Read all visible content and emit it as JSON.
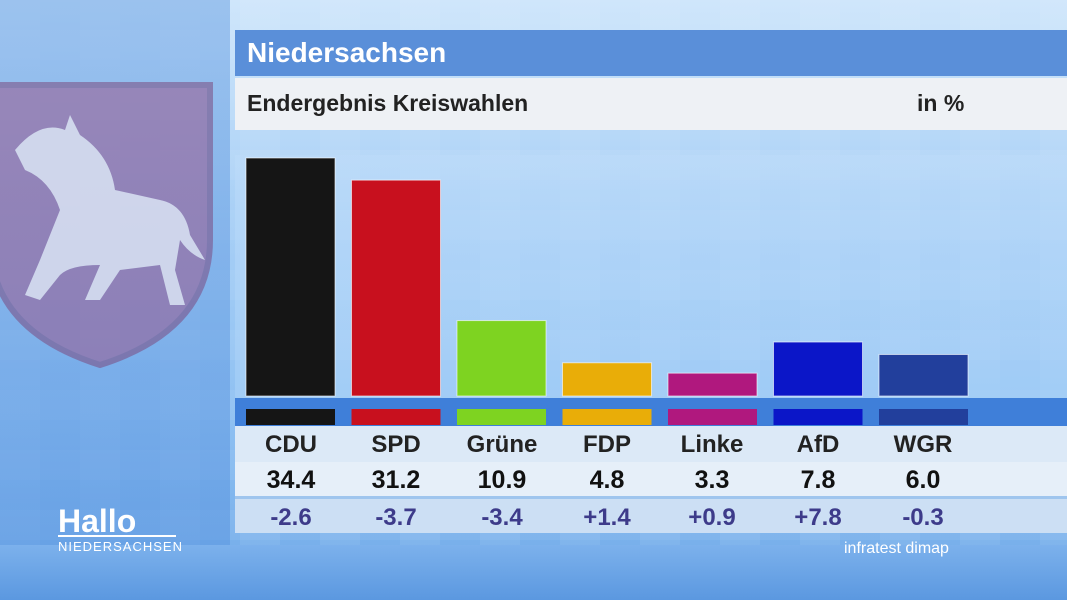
{
  "header": {
    "title": "Niedersachsen"
  },
  "subtitle": {
    "text": "Endergebnis Kreiswahlen",
    "unit": "in %"
  },
  "colors": {
    "CDU": "#151515",
    "SPD": "#c8101e",
    "Grüne": "#7ed321",
    "FDP": "#e9ad08",
    "Linke": "#b0187e",
    "AfD": "#0b16c8",
    "WGR": "#223f9c"
  },
  "chart_data": {
    "type": "bar",
    "title": "Endergebnis Kreiswahlen",
    "unit": "in %",
    "categories": [
      "CDU",
      "SPD",
      "Grüne",
      "FDP",
      "Linke",
      "AfD",
      "WGR"
    ],
    "values": [
      34.4,
      31.2,
      10.9,
      4.8,
      3.3,
      7.8,
      6.0
    ],
    "values_text": [
      "34.4",
      "31.2",
      "10.9",
      "4.8",
      "3.3",
      "7.8",
      "6.0"
    ],
    "diffs": [
      "-2.6",
      "-3.7",
      "-3.4",
      "+1.4",
      "+0.9",
      "+7.8",
      "-0.3"
    ],
    "ylim": [
      0,
      34.4
    ],
    "grid": false,
    "legend": "none"
  },
  "branding": {
    "logo_main": "Hallo",
    "logo_sub": "NIEDERSACHSEN",
    "source": "infratest dimap"
  }
}
